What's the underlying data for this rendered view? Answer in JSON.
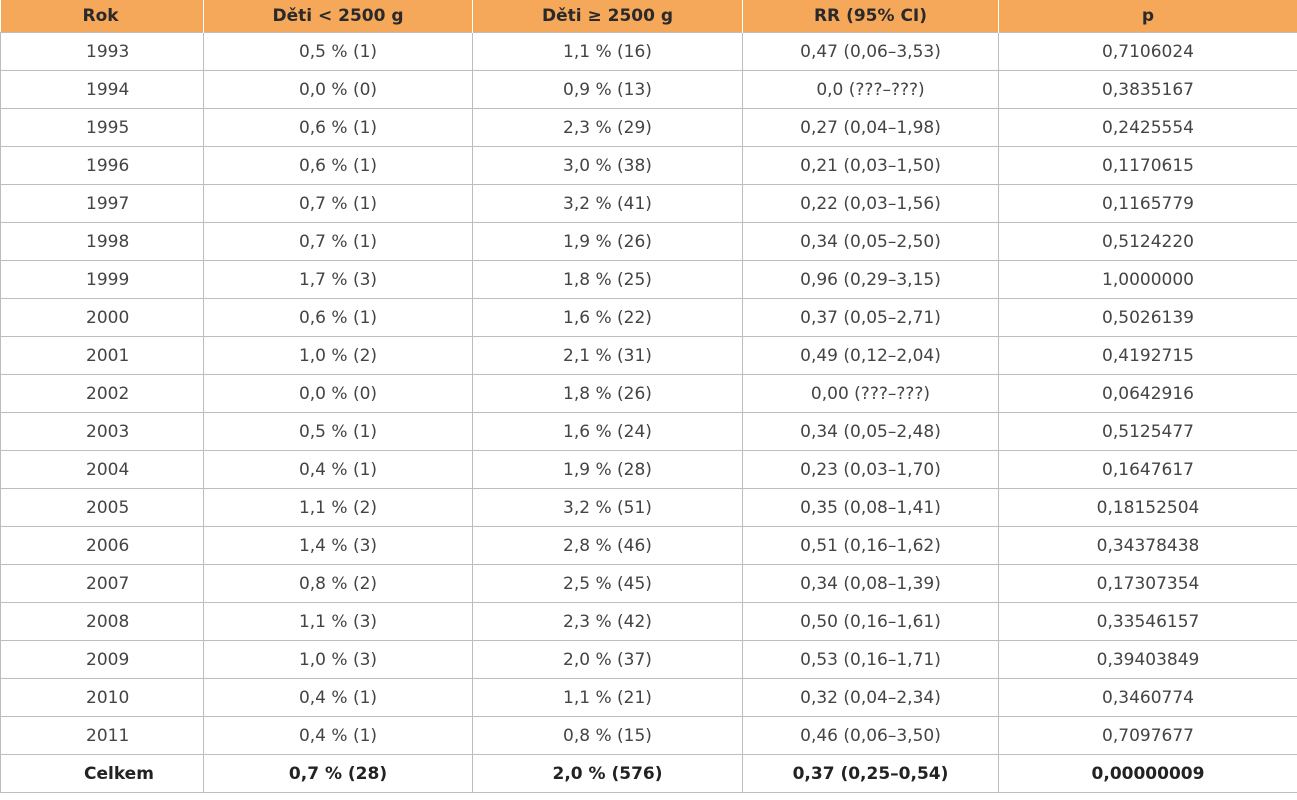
{
  "table": {
    "headers": [
      "Rok",
      "Děti  < 2500 g",
      "Děti ≥ 2500 g",
      "RR (95% CI)",
      "p"
    ],
    "rows": [
      [
        "1993",
        "0,5 % (1)",
        "1,1 % (16)",
        "0,47 (0,06–3,53)",
        "0,7106024"
      ],
      [
        "1994",
        "0,0 % (0)",
        "0,9 % (13)",
        "0,0 (???–???)",
        "0,3835167"
      ],
      [
        "1995",
        "0,6 % (1)",
        "2,3 % (29)",
        "0,27 (0,04–1,98)",
        "0,2425554"
      ],
      [
        "1996",
        "0,6 % (1)",
        "3,0 % (38)",
        "0,21 (0,03–1,50)",
        "0,1170615"
      ],
      [
        "1997",
        "0,7 % (1)",
        "3,2 % (41)",
        "0,22 (0,03–1,56)",
        "0,1165779"
      ],
      [
        "1998",
        "0,7 % (1)",
        "1,9 % (26)",
        "0,34 (0,05–2,50)",
        "0,5124220"
      ],
      [
        "1999",
        "1,7 % (3)",
        "1,8 % (25)",
        "0,96 (0,29–3,15)",
        "1,0000000"
      ],
      [
        "2000",
        "0,6 % (1)",
        "1,6 % (22)",
        "0,37 (0,05–2,71)",
        "0,5026139"
      ],
      [
        "2001",
        "1,0 % (2)",
        "2,1 % (31)",
        "0,49 (0,12–2,04)",
        "0,4192715"
      ],
      [
        "2002",
        "0,0 % (0)",
        "1,8 % (26)",
        "0,00  (???–???)",
        "0,0642916"
      ],
      [
        "2003",
        "0,5 % (1)",
        "1,6 % (24)",
        "0,34 (0,05–2,48)",
        "0,5125477"
      ],
      [
        "2004",
        "0,4 % (1)",
        "1,9 % (28)",
        "0,23 (0,03–1,70)",
        "0,1647617"
      ],
      [
        "2005",
        "1,1 % (2)",
        "3,2 % (51)",
        "0,35 (0,08–1,41)",
        "0,18152504"
      ],
      [
        "2006",
        "1,4 % (3)",
        "2,8 % (46)",
        "0,51 (0,16–1,62)",
        "0,34378438"
      ],
      [
        "2007",
        "0,8 % (2)",
        "2,5 % (45)",
        "0,34 (0,08–1,39)",
        "0,17307354"
      ],
      [
        "2008",
        "1,1 % (3)",
        "2,3 % (42)",
        "0,50 (0,16–1,61)",
        "0,33546157"
      ],
      [
        "2009",
        "1,0 % (3)",
        "2,0 % (37)",
        "0,53 (0,16–1,71)",
        "0,39403849"
      ],
      [
        "2010",
        "0,4 % (1)",
        "1,1 % (21)",
        "0,32 (0,04–2,34)",
        "0,3460774"
      ],
      [
        "2011",
        "0,4 % (1)",
        "0,8 % (15)",
        "0,46 (0,06–3,50)",
        "0,7097677"
      ]
    ],
    "total": [
      "Celkem",
      "0,7 % (28)",
      "2,0 % (576)",
      "0,37 (0,25–0,54)",
      "0,00000009"
    ]
  },
  "colors": {
    "header_bg": "#f5a85a",
    "grid": "#bdbdbd",
    "text": "#444444"
  }
}
